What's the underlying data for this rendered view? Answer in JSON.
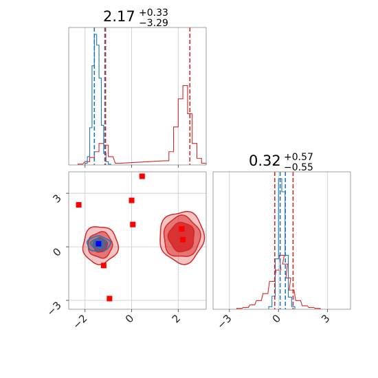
{
  "chart_data": {
    "type": "corner",
    "parameters": [
      {
        "median": "2.17",
        "plus": "+0.33",
        "minus": "−3.29",
        "ticks": [
          "−2",
          "0",
          "2"
        ],
        "tick_values": [
          -2,
          0,
          2
        ],
        "xlim": [
          -2.7,
          3.2
        ]
      },
      {
        "median": "0.32",
        "plus": "+0.57",
        "minus": "−0.55",
        "ticks": [
          "−3",
          "0",
          "3"
        ],
        "tick_values": [
          -3,
          0,
          3
        ],
        "xlim": [
          -4.0,
          4.4
        ]
      }
    ],
    "marginal_1": {
      "blue_series": {
        "x": [
          -1.95,
          -1.85,
          -1.75,
          -1.65,
          -1.55,
          -1.45,
          -1.35,
          -1.25,
          -1.15,
          -1.05,
          -0.95
        ],
        "counts": [
          2,
          10,
          45,
          120,
          158,
          145,
          105,
          48,
          14,
          4,
          1
        ]
      },
      "red_series": {
        "x": [
          -2.2,
          -1.9,
          -1.7,
          -1.5,
          -1.3,
          -1.1,
          -0.9,
          -0.6,
          1.5,
          1.7,
          1.9,
          2.1,
          2.3,
          2.5,
          2.7,
          2.9,
          3.1
        ],
        "counts": [
          1,
          4,
          9,
          16,
          26,
          24,
          10,
          2,
          5,
          16,
          46,
          80,
          96,
          62,
          26,
          8,
          2
        ]
      },
      "blue_quantiles": [
        -1.6,
        -1.15
      ],
      "red_quantiles": [
        -1.12,
        2.5
      ]
    },
    "marginal_2": {
      "blue_series": {
        "x": [
          -0.5,
          -0.3,
          -0.1,
          0.1,
          0.3,
          0.5,
          0.7,
          0.9
        ],
        "counts": [
          3,
          15,
          58,
          150,
          135,
          62,
          14,
          3
        ]
      },
      "red_series": {
        "x": [
          -2.4,
          -2.0,
          -1.6,
          -1.2,
          -0.8,
          -0.4,
          0.0,
          0.2,
          0.4,
          0.6,
          0.8,
          1.2,
          1.6,
          2.0,
          2.4
        ],
        "counts": [
          1,
          2,
          5,
          10,
          18,
          32,
          45,
          62,
          52,
          36,
          22,
          10,
          4,
          2,
          1
        ]
      },
      "blue_quantiles": [
        0.1,
        0.42
      ],
      "red_quantiles": [
        -0.23,
        0.89
      ]
    },
    "joint": {
      "red_modes": [
        {
          "cx": -1.35,
          "cy": 0.1,
          "levels": [
            [
              0.75,
              1.05
            ],
            [
              0.52,
              0.72
            ],
            [
              0.3,
              0.4
            ]
          ]
        },
        {
          "cx": 2.15,
          "cy": 0.55,
          "levels": [
            [
              0.95,
              1.45
            ],
            [
              0.78,
              1.15
            ],
            [
              0.55,
              0.82
            ]
          ]
        }
      ],
      "blue_mode": {
        "cx": -1.42,
        "cy": 0.17,
        "levels": [
          [
            0.5,
            0.42
          ],
          [
            0.33,
            0.28
          ],
          [
            0.18,
            0.17
          ]
        ]
      },
      "red_markers": [
        {
          "x": -2.27,
          "y": 2.35
        },
        {
          "x": 0.45,
          "y": 3.95
        },
        {
          "x": 0.0,
          "y": 2.6
        },
        {
          "x": 0.05,
          "y": 1.25
        },
        {
          "x": -1.2,
          "y": -1.05
        },
        {
          "x": -0.95,
          "y": -2.9
        },
        {
          "x": 2.15,
          "y": 1.0
        },
        {
          "x": 2.2,
          "y": 0.4
        }
      ],
      "blue_marker": {
        "x": -1.42,
        "y": 0.17
      },
      "ylim": [
        -3.5,
        4.2
      ]
    },
    "colors": {
      "red": "#d62728",
      "blue": "#1f77b4",
      "marker_red": "#ff0000",
      "marker_blue": "#0000ff",
      "grid": "#c8c8c8"
    },
    "grid": true
  }
}
